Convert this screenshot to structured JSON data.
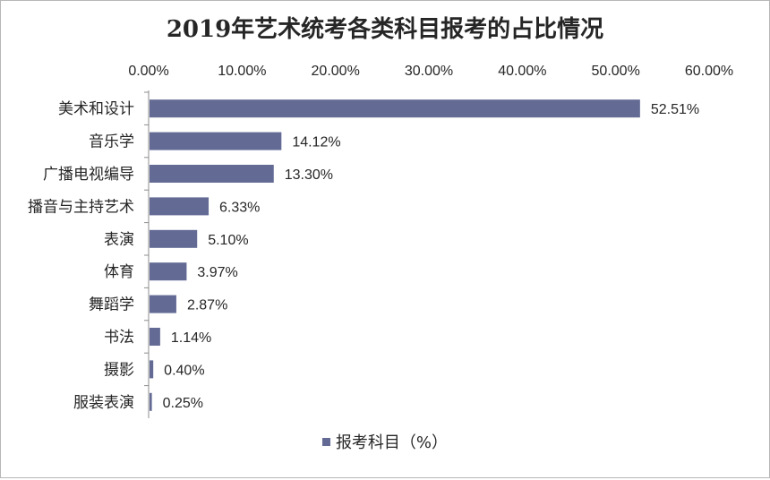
{
  "chart_data": {
    "type": "bar",
    "orientation": "horizontal",
    "title": "2019年艺术统考各类科目报考的占比情况",
    "categories": [
      "美术和设计",
      "音乐学",
      "广播电视编导",
      "播音与主持艺术",
      "表演",
      "体育",
      "舞蹈学",
      "书法",
      "摄影",
      "服装表演"
    ],
    "series": [
      {
        "name": "报考科目（%）",
        "values": [
          52.51,
          14.12,
          13.3,
          6.33,
          5.1,
          3.97,
          2.87,
          1.14,
          0.4,
          0.25
        ],
        "labels": [
          "52.51%",
          "14.12%",
          "13.30%",
          "6.33%",
          "5.10%",
          "3.97%",
          "2.87%",
          "1.14%",
          "0.40%",
          "0.25%"
        ]
      }
    ],
    "xticks": [
      "0.00%",
      "10.00%",
      "20.00%",
      "30.00%",
      "40.00%",
      "50.00%",
      "60.00%"
    ],
    "xlim": [
      0,
      60
    ],
    "xaxis_position": "top",
    "grid": false,
    "legend_position": "bottom",
    "bar_color": "#636b95"
  }
}
